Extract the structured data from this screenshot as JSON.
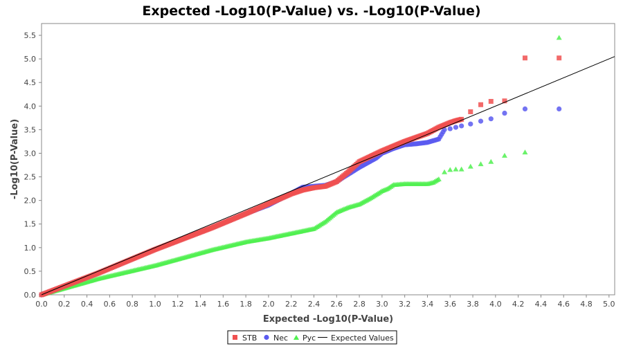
{
  "chart_data": {
    "type": "scatter",
    "title": "Expected -Log10(P-Value) vs. -Log10(P-Value)",
    "xlabel": "Expected -Log10(P-Value)",
    "ylabel": "-Log10(P-Value)",
    "xlim": [
      0,
      5.05
    ],
    "ylim": [
      0,
      5.75
    ],
    "xticks": [
      "0.0",
      "0.2",
      "0.4",
      "0.6",
      "0.8",
      "1.0",
      "1.2",
      "1.4",
      "1.6",
      "1.8",
      "2.0",
      "2.2",
      "2.4",
      "2.6",
      "2.8",
      "3.0",
      "3.2",
      "3.4",
      "3.6",
      "3.8",
      "4.0",
      "4.2",
      "4.4",
      "4.6",
      "4.8",
      "5.0"
    ],
    "yticks": [
      "0.0",
      "0.5",
      "1.0",
      "1.5",
      "2.0",
      "2.5",
      "3.0",
      "3.5",
      "4.0",
      "4.5",
      "5.0",
      "5.5"
    ],
    "legend_position": "bottom-center",
    "series": [
      {
        "name": "STB",
        "marker": "square",
        "color": "#f05050",
        "curve_x": [
          0,
          0.5,
          1.0,
          1.5,
          1.8,
          2.0,
          2.2,
          2.3,
          2.4,
          2.5,
          2.6,
          2.7,
          2.8,
          3.0,
          3.2,
          3.4,
          3.5,
          3.6,
          3.65,
          3.7
        ],
        "curve_y": [
          0,
          0.46,
          0.96,
          1.42,
          1.72,
          1.93,
          2.14,
          2.22,
          2.27,
          2.3,
          2.4,
          2.6,
          2.82,
          3.05,
          3.25,
          3.42,
          3.55,
          3.65,
          3.69,
          3.72
        ],
        "tail_x": [
          3.78,
          3.87,
          3.96,
          4.08,
          4.26,
          4.56
        ],
        "tail_y": [
          3.88,
          4.03,
          4.1,
          4.11,
          5.02,
          5.02
        ]
      },
      {
        "name": "Nec",
        "marker": "circle",
        "color": "#5a5af0",
        "curve_x": [
          0,
          0.5,
          1.0,
          1.5,
          1.8,
          2.0,
          2.2,
          2.3,
          2.4,
          2.5,
          2.6,
          2.7,
          2.8,
          2.95,
          3.0,
          3.1,
          3.2,
          3.3,
          3.4,
          3.5,
          3.55
        ],
        "curve_y": [
          0,
          0.46,
          0.96,
          1.42,
          1.72,
          1.9,
          2.15,
          2.28,
          2.3,
          2.32,
          2.4,
          2.55,
          2.7,
          2.9,
          3.0,
          3.1,
          3.18,
          3.2,
          3.23,
          3.3,
          3.5
        ],
        "tail_x": [
          3.6,
          3.65,
          3.7,
          3.78,
          3.87,
          3.96,
          4.08,
          4.26,
          4.56
        ],
        "tail_y": [
          3.52,
          3.55,
          3.58,
          3.62,
          3.68,
          3.73,
          3.85,
          3.94,
          3.94
        ]
      },
      {
        "name": "Pyc",
        "marker": "triangle",
        "color": "#50f050",
        "curve_x": [
          0,
          0.5,
          1.0,
          1.5,
          1.8,
          2.0,
          2.2,
          2.4,
          2.5,
          2.6,
          2.7,
          2.8,
          2.9,
          3.0,
          3.05,
          3.1,
          3.2,
          3.3,
          3.4,
          3.45,
          3.5
        ],
        "curve_y": [
          0,
          0.34,
          0.62,
          0.95,
          1.12,
          1.2,
          1.3,
          1.4,
          1.55,
          1.75,
          1.85,
          1.92,
          2.05,
          2.2,
          2.25,
          2.33,
          2.35,
          2.35,
          2.35,
          2.38,
          2.45
        ],
        "tail_x": [
          3.55,
          3.6,
          3.65,
          3.7,
          3.78,
          3.87,
          3.96,
          4.08,
          4.26,
          4.56
        ],
        "tail_y": [
          2.6,
          2.65,
          2.66,
          2.66,
          2.72,
          2.77,
          2.82,
          2.95,
          3.02,
          5.45
        ]
      }
    ],
    "reference_line": {
      "name": "Expected Values",
      "color": "#000000",
      "x": [
        0,
        5.05
      ],
      "y": [
        0,
        5.05
      ]
    }
  }
}
